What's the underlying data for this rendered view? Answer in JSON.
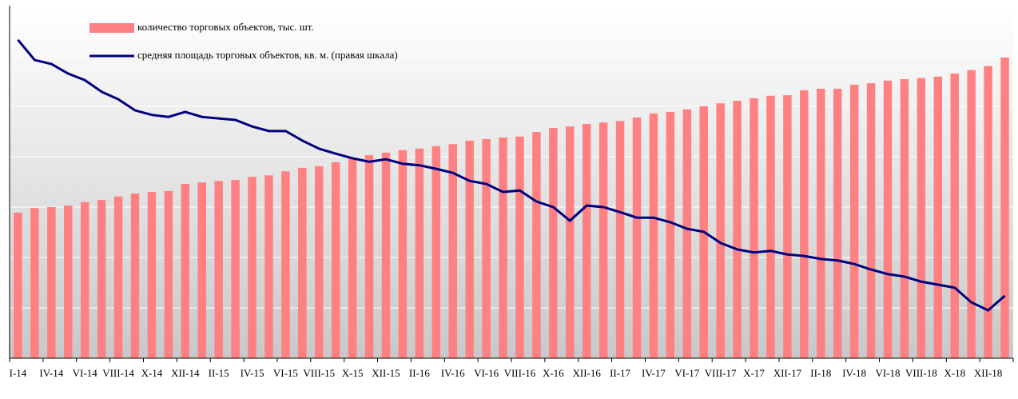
{
  "chart_data": {
    "type": "bar-line",
    "categories": [
      "I-14",
      null,
      "IV-14",
      null,
      "VI-14",
      null,
      "VIII-14",
      null,
      "X-14",
      null,
      "XII-14",
      null,
      "II-15",
      null,
      "IV-15",
      null,
      "VI-15",
      null,
      "VIII-15",
      null,
      "X-15",
      null,
      "XII-15",
      null,
      "II-16",
      null,
      "IV-16",
      null,
      "VI-16",
      null,
      "VIII-16",
      null,
      "X-16",
      null,
      "XII-16",
      null,
      "II-17",
      null,
      "IV-17",
      null,
      "VI-17",
      null,
      "VIII-17",
      null,
      "X-17",
      null,
      "XII-17",
      null,
      "II-18",
      null,
      "IV-18",
      null,
      "VI-18",
      null,
      "VIII-18",
      null,
      "X-18",
      null,
      "XII-18",
      null
    ],
    "series": [
      {
        "name": "количество торговых объектов, тыс. шт.",
        "color": "#ff8080",
        "kind": "bar",
        "values": [
          2.89,
          2.98,
          3.0,
          3.03,
          3.1,
          3.14,
          3.21,
          3.27,
          3.3,
          3.32,
          3.46,
          3.49,
          3.52,
          3.54,
          3.6,
          3.63,
          3.71,
          3.78,
          3.81,
          3.89,
          3.97,
          4.03,
          4.08,
          4.13,
          4.16,
          4.21,
          4.25,
          4.32,
          4.35,
          4.38,
          4.4,
          4.49,
          4.57,
          4.6,
          4.65,
          4.68,
          4.71,
          4.78,
          4.86,
          4.89,
          4.94,
          5.0,
          5.06,
          5.11,
          5.16,
          5.21,
          5.22,
          5.32,
          5.35,
          5.35,
          5.43,
          5.46,
          5.51,
          5.54,
          5.56,
          5.59,
          5.65,
          5.72,
          5.8,
          5.97
        ]
      },
      {
        "name": "средняя площадь торговых объектов, кв. м. (правая шкала)",
        "color": "#000080",
        "kind": "line",
        "axis": "y2",
        "values": [
          6.32,
          5.92,
          5.84,
          5.65,
          5.52,
          5.29,
          5.14,
          4.92,
          4.83,
          4.79,
          4.89,
          4.79,
          4.76,
          4.73,
          4.6,
          4.51,
          4.51,
          4.32,
          4.16,
          4.06,
          3.97,
          3.9,
          3.95,
          3.86,
          3.83,
          3.76,
          3.68,
          3.52,
          3.46,
          3.3,
          3.33,
          3.11,
          3.0,
          2.73,
          3.03,
          3.0,
          2.9,
          2.79,
          2.79,
          2.7,
          2.57,
          2.51,
          2.29,
          2.16,
          2.1,
          2.13,
          2.06,
          2.03,
          1.97,
          1.94,
          1.87,
          1.76,
          1.67,
          1.62,
          1.52,
          1.46,
          1.4,
          1.11,
          0.95,
          1.24
        ]
      }
    ],
    "ylim": [
      0,
      7
    ],
    "yticks": [
      0,
      1,
      2,
      3,
      4,
      5,
      6,
      7
    ],
    "y2lim": [
      0,
      7
    ],
    "grid": true
  }
}
